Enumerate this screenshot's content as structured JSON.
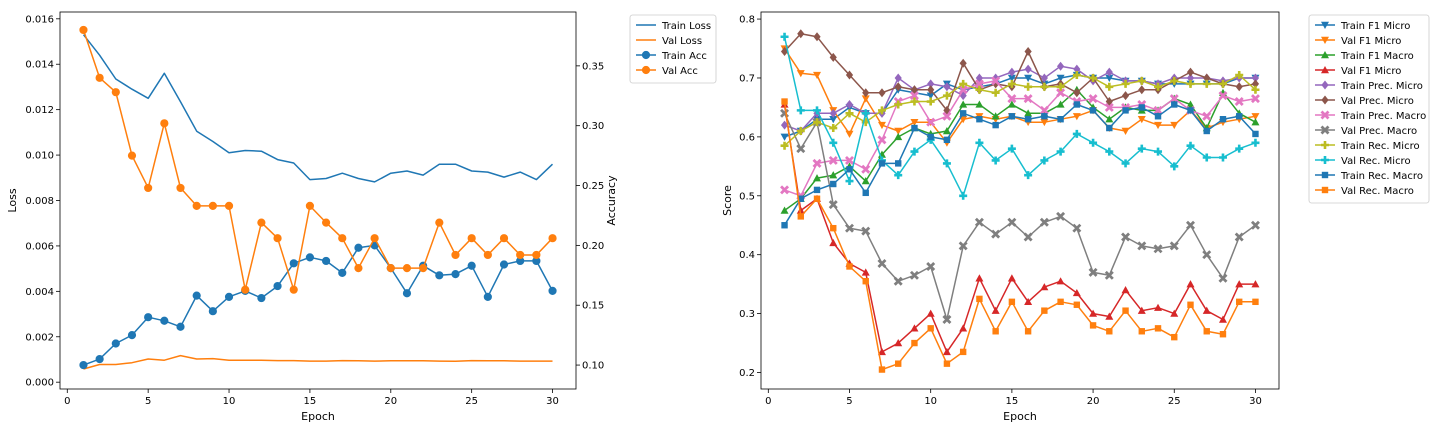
{
  "chart_data": [
    {
      "type": "line",
      "xlabel": "Epoch",
      "ylabel": "Loss",
      "y2label": "Accuracy",
      "xlim": [
        -0.45,
        31.45
      ],
      "ylim": [
        -0.0003,
        0.0163
      ],
      "y2lim": [
        0.08,
        0.395
      ],
      "xticks": [
        "0",
        "5",
        "10",
        "15",
        "20",
        "25",
        "30"
      ],
      "yticks": [
        "0.000",
        "0.002",
        "0.004",
        "0.006",
        "0.008",
        "0.010",
        "0.012",
        "0.014",
        "0.016"
      ],
      "y2ticks": [
        "0.10",
        "0.15",
        "0.20",
        "0.25",
        "0.30",
        "0.35"
      ],
      "legend_position": "outside-top-right",
      "grid": false,
      "x": [
        1,
        2,
        3,
        4,
        5,
        6,
        7,
        8,
        9,
        10,
        11,
        12,
        13,
        14,
        15,
        16,
        17,
        18,
        19,
        20,
        21,
        22,
        23,
        24,
        25,
        26,
        27,
        28,
        29,
        30
      ],
      "series": [
        {
          "name": "Train Loss",
          "axis": "left",
          "color": "#1f77b4",
          "marker": "none",
          "values": [
            0.0153,
            0.0144,
            0.01335,
            0.0129,
            0.0125,
            0.0136,
            0.01235,
            0.01105,
            0.0106,
            0.0101,
            0.0102,
            0.01017,
            0.0098,
            0.00965,
            0.00892,
            0.00897,
            0.0092,
            0.00897,
            0.00882,
            0.0092,
            0.0093,
            0.00912,
            0.0096,
            0.0096,
            0.0093,
            0.00925,
            0.00903,
            0.00925,
            0.00892,
            0.0096
          ]
        },
        {
          "name": "Val Loss",
          "axis": "left",
          "color": "#ff7f0e",
          "marker": "none",
          "values": [
            0.00058,
            0.00078,
            0.00078,
            0.00086,
            0.00102,
            0.00097,
            0.00117,
            0.00102,
            0.00104,
            0.00097,
            0.00097,
            0.00097,
            0.00095,
            0.00095,
            0.00093,
            0.00093,
            0.00095,
            0.00094,
            0.00093,
            0.00094,
            0.00094,
            0.00094,
            0.00093,
            0.00092,
            0.00095,
            0.00094,
            0.00094,
            0.00093,
            0.00093,
            0.00093
          ]
        },
        {
          "name": "Train Acc",
          "axis": "right",
          "color": "#1f77b4",
          "marker": "circle",
          "values": [
            0.1,
            0.105,
            0.118,
            0.125,
            0.14,
            0.137,
            0.132,
            0.158,
            0.145,
            0.157,
            0.162,
            0.156,
            0.166,
            0.185,
            0.19,
            0.187,
            0.177,
            0.198,
            0.2,
            0.181,
            0.16,
            0.183,
            0.175,
            0.176,
            0.183,
            0.157,
            0.184,
            0.187,
            0.187,
            0.162
          ]
        },
        {
          "name": "Val Acc",
          "axis": "right",
          "color": "#ff7f0e",
          "marker": "circle",
          "values": [
            0.38,
            0.34,
            0.328,
            0.275,
            0.248,
            0.302,
            0.248,
            0.233,
            0.233,
            0.233,
            0.163,
            0.219,
            0.206,
            0.163,
            0.233,
            0.219,
            0.206,
            0.181,
            0.206,
            0.181,
            0.181,
            0.181,
            0.219,
            0.192,
            0.206,
            0.192,
            0.206,
            0.192,
            0.192,
            0.206
          ]
        }
      ]
    },
    {
      "type": "line",
      "xlabel": "Epoch",
      "ylabel": "Score",
      "xlim": [
        -0.45,
        31.45
      ],
      "ylim": [
        0.172,
        0.812
      ],
      "xticks": [
        "0",
        "5",
        "10",
        "15",
        "20",
        "25",
        "30"
      ],
      "yticks": [
        "0.2",
        "0.3",
        "0.4",
        "0.5",
        "0.6",
        "0.7",
        "0.8"
      ],
      "legend_position": "outside-top-right",
      "grid": false,
      "x": [
        1,
        2,
        3,
        4,
        5,
        6,
        7,
        8,
        9,
        10,
        11,
        12,
        13,
        14,
        15,
        16,
        17,
        18,
        19,
        20,
        21,
        22,
        23,
        24,
        25,
        26,
        27,
        28,
        29,
        30
      ],
      "series": [
        {
          "name": "Train F1 Micro",
          "color": "#1f77b4",
          "marker": "tri-down",
          "values": [
            0.6,
            0.61,
            0.63,
            0.63,
            0.65,
            0.64,
            0.64,
            0.68,
            0.675,
            0.67,
            0.69,
            0.68,
            0.685,
            0.69,
            0.7,
            0.7,
            0.69,
            0.7,
            0.705,
            0.7,
            0.7,
            0.695,
            0.695,
            0.69,
            0.69,
            0.69,
            0.69,
            0.69,
            0.7,
            0.7
          ]
        },
        {
          "name": "Val F1 Micro",
          "color": "#ff7f0e",
          "marker": "tri-down",
          "values": [
            0.75,
            0.708,
            0.705,
            0.645,
            0.605,
            0.665,
            0.62,
            0.61,
            0.625,
            0.625,
            0.59,
            0.63,
            0.635,
            0.63,
            0.635,
            0.625,
            0.625,
            0.63,
            0.635,
            0.645,
            0.615,
            0.61,
            0.63,
            0.62,
            0.62,
            0.645,
            0.615,
            0.625,
            0.63,
            0.635
          ]
        },
        {
          "name": "Train F1 Macro",
          "color": "#2ca02c",
          "marker": "tri-up",
          "values": [
            0.475,
            0.495,
            0.53,
            0.535,
            0.55,
            0.525,
            0.57,
            0.6,
            0.615,
            0.605,
            0.61,
            0.655,
            0.655,
            0.635,
            0.655,
            0.64,
            0.64,
            0.655,
            0.68,
            0.65,
            0.63,
            0.65,
            0.645,
            0.645,
            0.665,
            0.655,
            0.615,
            0.675,
            0.64,
            0.625
          ]
        },
        {
          "name": "Val F1 Micro",
          "color": "#d62728",
          "marker": "tri-up",
          "values": [
            0.655,
            0.475,
            0.495,
            0.42,
            0.385,
            0.37,
            0.235,
            0.25,
            0.275,
            0.3,
            0.235,
            0.275,
            0.36,
            0.305,
            0.36,
            0.32,
            0.345,
            0.355,
            0.335,
            0.3,
            0.295,
            0.34,
            0.305,
            0.31,
            0.3,
            0.35,
            0.305,
            0.29,
            0.35,
            0.35
          ]
        },
        {
          "name": "Train Prec. Micro",
          "color": "#9467bd",
          "marker": "diamond",
          "values": [
            0.62,
            0.61,
            0.64,
            0.64,
            0.655,
            0.64,
            0.64,
            0.7,
            0.68,
            0.69,
            0.685,
            0.67,
            0.7,
            0.7,
            0.71,
            0.715,
            0.7,
            0.72,
            0.715,
            0.695,
            0.71,
            0.695,
            0.695,
            0.69,
            0.7,
            0.7,
            0.7,
            0.695,
            0.7,
            0.7
          ]
        },
        {
          "name": "Val Prec. Micro",
          "color": "#8c564b",
          "marker": "diamond",
          "values": [
            0.745,
            0.775,
            0.77,
            0.735,
            0.705,
            0.675,
            0.675,
            0.685,
            0.68,
            0.68,
            0.645,
            0.725,
            0.68,
            0.69,
            0.685,
            0.745,
            0.685,
            0.69,
            0.675,
            0.7,
            0.66,
            0.67,
            0.68,
            0.68,
            0.695,
            0.71,
            0.7,
            0.69,
            0.685,
            0.69
          ]
        },
        {
          "name": "Train Prec. Macro",
          "color": "#e377c2",
          "marker": "x",
          "values": [
            0.51,
            0.5,
            0.555,
            0.56,
            0.56,
            0.545,
            0.595,
            0.66,
            0.67,
            0.625,
            0.635,
            0.68,
            0.69,
            0.695,
            0.665,
            0.665,
            0.645,
            0.675,
            0.66,
            0.665,
            0.65,
            0.65,
            0.655,
            0.645,
            0.665,
            0.645,
            0.635,
            0.67,
            0.66,
            0.665
          ]
        },
        {
          "name": "Val Prec. Macro",
          "color": "#7f7f7f",
          "marker": "x",
          "values": [
            0.64,
            0.58,
            0.625,
            0.485,
            0.445,
            0.44,
            0.385,
            0.355,
            0.365,
            0.38,
            0.29,
            0.415,
            0.455,
            0.435,
            0.455,
            0.43,
            0.455,
            0.465,
            0.445,
            0.37,
            0.365,
            0.43,
            0.415,
            0.41,
            0.415,
            0.45,
            0.4,
            0.36,
            0.43,
            0.45
          ]
        },
        {
          "name": "Train Rec. Micro",
          "color": "#bcbd22",
          "marker": "plus",
          "values": [
            0.585,
            0.61,
            0.625,
            0.615,
            0.64,
            0.625,
            0.645,
            0.655,
            0.66,
            0.66,
            0.67,
            0.69,
            0.68,
            0.675,
            0.69,
            0.685,
            0.685,
            0.685,
            0.705,
            0.7,
            0.685,
            0.69,
            0.695,
            0.685,
            0.695,
            0.69,
            0.69,
            0.69,
            0.705,
            0.68
          ]
        },
        {
          "name": "Val Rec. Micro",
          "color": "#17becf",
          "marker": "plus",
          "values": [
            0.77,
            0.645,
            0.645,
            0.59,
            0.525,
            0.64,
            0.56,
            0.535,
            0.575,
            0.595,
            0.555,
            0.5,
            0.59,
            0.56,
            0.58,
            0.535,
            0.56,
            0.575,
            0.605,
            0.59,
            0.575,
            0.555,
            0.58,
            0.575,
            0.55,
            0.585,
            0.565,
            0.565,
            0.58,
            0.59
          ]
        },
        {
          "name": "Train Rec. Macro",
          "color": "#1f77b4",
          "marker": "square",
          "values": [
            0.45,
            0.495,
            0.51,
            0.52,
            0.545,
            0.505,
            0.555,
            0.555,
            0.615,
            0.6,
            0.595,
            0.64,
            0.63,
            0.62,
            0.635,
            0.63,
            0.635,
            0.63,
            0.655,
            0.645,
            0.615,
            0.645,
            0.65,
            0.635,
            0.655,
            0.645,
            0.61,
            0.63,
            0.635,
            0.605
          ]
        },
        {
          "name": "Val Rec. Macro",
          "color": "#ff7f0e",
          "marker": "square",
          "values": [
            0.66,
            0.465,
            0.495,
            0.445,
            0.38,
            0.355,
            0.205,
            0.215,
            0.25,
            0.275,
            0.215,
            0.235,
            0.325,
            0.27,
            0.32,
            0.27,
            0.305,
            0.32,
            0.315,
            0.28,
            0.27,
            0.305,
            0.27,
            0.275,
            0.26,
            0.315,
            0.27,
            0.265,
            0.32,
            0.32
          ]
        }
      ]
    }
  ]
}
